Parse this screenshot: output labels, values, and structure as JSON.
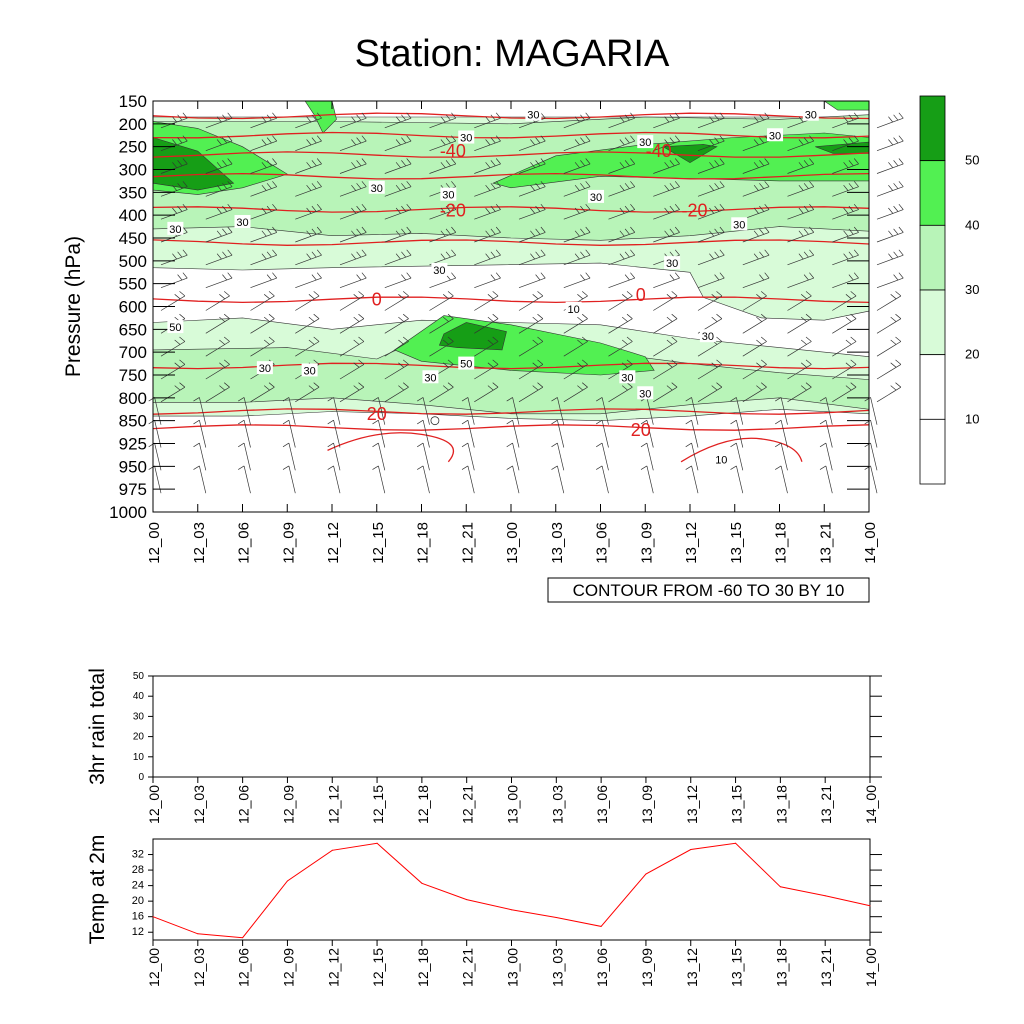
{
  "chart_data": [
    {
      "type": "heatmap",
      "title": "Station: MAGARIA",
      "ylabel": "Pressure (hPa)",
      "xlabel": "",
      "x_ticks": [
        "12_00",
        "12_03",
        "12_06",
        "12_09",
        "12_12",
        "12_15",
        "12_18",
        "12_21",
        "13_00",
        "13_03",
        "13_06",
        "13_09",
        "13_12",
        "13_15",
        "13_18",
        "13_21",
        "14_00"
      ],
      "y_ticks": [
        "150",
        "200",
        "250",
        "300",
        "350",
        "400",
        "450",
        "500",
        "550",
        "600",
        "650",
        "700",
        "750",
        "800",
        "850",
        "925",
        "950",
        "975",
        "1000"
      ],
      "legend": {
        "placement": "right",
        "levels": [
          "10",
          "20",
          "30",
          "40",
          "50"
        ],
        "colors": [
          "#ffffff",
          "#ffffff",
          "#d8fbd8",
          "#b8f4b8",
          "#52f052",
          "#169e16"
        ]
      },
      "contour_labels_wind": [
        {
          "time": 0.5,
          "level": 9.9,
          "text": "50"
        },
        {
          "time": 2.0,
          "level": 5.3,
          "text": "30"
        },
        {
          "time": 2.5,
          "level": 11.7,
          "text": "30"
        },
        {
          "time": 0.5,
          "level": 5.6,
          "text": "30"
        },
        {
          "time": 3.5,
          "level": 11.8,
          "text": "30"
        },
        {
          "time": 6.2,
          "level": 12.1,
          "text": "30"
        },
        {
          "time": 6.6,
          "level": 4.1,
          "text": "30"
        },
        {
          "time": 6.4,
          "level": 7.4,
          "text": "30"
        },
        {
          "time": 7.0,
          "level": 1.6,
          "text": "30"
        },
        {
          "time": 5.0,
          "level": 3.8,
          "text": "30"
        },
        {
          "time": 7.0,
          "level": 11.5,
          "text": "50"
        },
        {
          "time": 8.5,
          "level": 0.6,
          "text": "30"
        },
        {
          "time": 9.9,
          "level": 4.2,
          "text": "30"
        },
        {
          "time": 10.6,
          "level": 12.1,
          "text": "30"
        },
        {
          "time": 11.6,
          "level": 7.1,
          "text": "30"
        },
        {
          "time": 11.0,
          "level": 1.8,
          "text": "30"
        },
        {
          "time": 9.4,
          "level": 9.1,
          "text": "10"
        },
        {
          "time": 12.4,
          "level": 10.3,
          "text": "30"
        },
        {
          "time": 12.7,
          "level": 15.7,
          "text": "10"
        },
        {
          "time": 13.9,
          "level": 1.5,
          "text": "30"
        },
        {
          "time": 14.7,
          "level": 0.6,
          "text": "30"
        },
        {
          "time": 11.0,
          "level": 12.8,
          "text": "30"
        },
        {
          "time": 13.1,
          "level": 5.4,
          "text": "30"
        }
      ],
      "contour_labels_temp": [
        {
          "time": 6.7,
          "level": 2.2,
          "text": "-40"
        },
        {
          "time": 11.3,
          "level": 2.2,
          "text": "-40"
        },
        {
          "time": 6.7,
          "level": 4.8,
          "text": "-20"
        },
        {
          "time": 12.1,
          "level": 4.8,
          "text": "-20"
        },
        {
          "time": 5.0,
          "level": 8.7,
          "text": "0"
        },
        {
          "time": 10.9,
          "level": 8.5,
          "text": "0"
        },
        {
          "time": 5.0,
          "level": 13.7,
          "text": "20"
        },
        {
          "time": 10.9,
          "level": 14.4,
          "text": "20"
        }
      ],
      "annotation": "CONTOUR FROM -60 TO 30 BY 10"
    },
    {
      "type": "line",
      "ylabel": "3hr rain total",
      "ylim": [
        0,
        50
      ],
      "y_ticks": [
        "0",
        "10",
        "20",
        "30",
        "40",
        "50"
      ],
      "x_ticks": [
        "12_00",
        "12_03",
        "12_06",
        "12_09",
        "12_12",
        "12_15",
        "12_18",
        "12_21",
        "13_00",
        "13_03",
        "13_06",
        "13_09",
        "13_12",
        "13_15",
        "13_18",
        "13_21",
        "14_00"
      ],
      "series": [
        {
          "name": "3hr rain total",
          "values": [
            0,
            0,
            0,
            0,
            0,
            0,
            0,
            0,
            0,
            0,
            0,
            0,
            0,
            0,
            0,
            0,
            0
          ]
        }
      ]
    },
    {
      "type": "line",
      "ylabel": "Temp at 2m",
      "ylim": [
        10,
        36
      ],
      "y_ticks": [
        "12",
        "16",
        "20",
        "24",
        "28",
        "32"
      ],
      "x_ticks": [
        "12_00",
        "12_03",
        "12_06",
        "12_09",
        "12_12",
        "12_15",
        "12_18",
        "12_21",
        "13_00",
        "13_03",
        "13_06",
        "13_09",
        "13_12",
        "13_15",
        "13_18",
        "13_21",
        "14_00"
      ],
      "series": [
        {
          "name": "Temp at 2m",
          "color": "#ff0000",
          "values": [
            16.0,
            11.6,
            10.6,
            25.2,
            33.1,
            34.9,
            24.6,
            20.4,
            17.8,
            15.8,
            13.5,
            27.0,
            33.3,
            34.9,
            23.7,
            21.4,
            18.8
          ]
        }
      ]
    }
  ]
}
